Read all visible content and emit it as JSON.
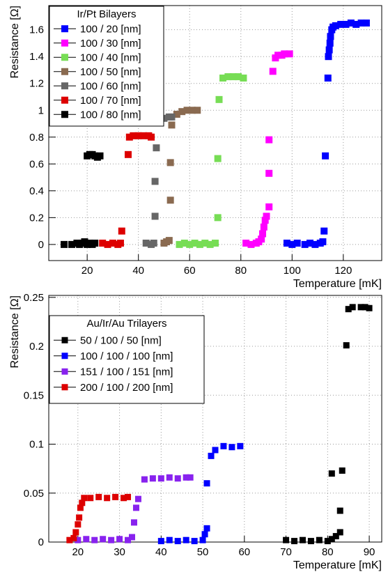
{
  "chart_data": [
    {
      "type": "scatter",
      "xlabel": "Temperature [mK]",
      "ylabel": "Resistance [Ω]",
      "xlim": [
        5,
        135
      ],
      "ylim": [
        -0.12,
        1.78
      ],
      "x_ticks": [
        20,
        40,
        60,
        80,
        100,
        120
      ],
      "y_ticks": [
        0,
        0.2,
        0.4,
        0.6,
        0.8,
        1,
        1.2,
        1.4,
        1.6
      ],
      "y_tick_labels": [
        "0",
        "0.2",
        "0.4",
        "0.6",
        "0.8",
        "1",
        "1.2",
        "1.4",
        "1.6"
      ],
      "grid": true,
      "legend": {
        "title": "Ir/Pt Bilayers",
        "position": "top-left"
      },
      "series": [
        {
          "name": "100 / 20 [nm]",
          "color": "#0000ff",
          "marker": "square",
          "points": [
            [
              98,
              0.01
            ],
            [
              100,
              0.0
            ],
            [
              102,
              0.01
            ],
            [
              105,
              0.0
            ],
            [
              107,
              0.01
            ],
            [
              109,
              0.0
            ],
            [
              111,
              0.01
            ],
            [
              112,
              0.02
            ],
            [
              112.5,
              0.1
            ],
            [
              113,
              0.66
            ],
            [
              114,
              1.24
            ],
            [
              114.2,
              1.4
            ],
            [
              114.5,
              1.45
            ],
            [
              114.8,
              1.5
            ],
            [
              115,
              1.55
            ],
            [
              115.5,
              1.6
            ],
            [
              116,
              1.62
            ],
            [
              117,
              1.63
            ],
            [
              119,
              1.64
            ],
            [
              121,
              1.64
            ],
            [
              123,
              1.65
            ],
            [
              125,
              1.64
            ],
            [
              127,
              1.65
            ],
            [
              129,
              1.65
            ]
          ]
        },
        {
          "name": "100 / 30 [nm]",
          "color": "#ff00ff",
          "marker": "square",
          "points": [
            [
              82,
              0.01
            ],
            [
              84,
              0.0
            ],
            [
              86,
              0.01
            ],
            [
              87,
              0.02
            ],
            [
              88,
              0.04
            ],
            [
              88.5,
              0.08
            ],
            [
              89,
              0.13
            ],
            [
              89.5,
              0.18
            ],
            [
              90,
              0.21
            ],
            [
              91,
              0.28
            ],
            [
              91,
              0.53
            ],
            [
              91,
              0.78
            ],
            [
              92.5,
              1.29
            ],
            [
              93.5,
              1.39
            ],
            [
              94.5,
              1.41
            ],
            [
              96,
              1.41
            ],
            [
              97,
              1.42
            ],
            [
              99,
              1.42
            ]
          ]
        },
        {
          "name": "100 / 40 [nm]",
          "color": "#77dd55",
          "marker": "square",
          "points": [
            [
              56,
              0.0
            ],
            [
              58,
              0.01
            ],
            [
              60,
              0.0
            ],
            [
              62,
              0.01
            ],
            [
              64,
              0.0
            ],
            [
              66,
              0.01
            ],
            [
              68,
              0.0
            ],
            [
              70,
              0.01
            ],
            [
              71,
              0.2
            ],
            [
              71,
              0.64
            ],
            [
              71.5,
              1.08
            ],
            [
              73,
              1.24
            ],
            [
              75,
              1.25
            ],
            [
              77,
              1.25
            ],
            [
              79,
              1.25
            ],
            [
              81,
              1.24
            ]
          ]
        },
        {
          "name": "100 / 50 [nm]",
          "color": "#8a6a50",
          "marker": "square",
          "points": [
            [
              50,
              0.01
            ],
            [
              51,
              0.02
            ],
            [
              52,
              0.03
            ],
            [
              52.5,
              0.33
            ],
            [
              52.5,
              0.61
            ],
            [
              53,
              0.89
            ],
            [
              55,
              0.97
            ],
            [
              57,
              0.99
            ],
            [
              59,
              1.0
            ],
            [
              61,
              1.0
            ],
            [
              63,
              1.0
            ]
          ]
        },
        {
          "name": "100 / 60 [nm]",
          "color": "#666666",
          "marker": "square",
          "points": [
            [
              43,
              0.01
            ],
            [
              45,
              0.0
            ],
            [
              46,
              0.01
            ],
            [
              46.5,
              0.21
            ],
            [
              46.5,
              0.47
            ],
            [
              47,
              0.72
            ],
            [
              48,
              0.93
            ],
            [
              50,
              0.94
            ],
            [
              52,
              0.95
            ],
            [
              53,
              0.95
            ]
          ]
        },
        {
          "name": "100 / 70 [nm]",
          "color": "#dd0000",
          "marker": "square",
          "points": [
            [
              26,
              0.01
            ],
            [
              28,
              0.0
            ],
            [
              30,
              0.01
            ],
            [
              32,
              0.0
            ],
            [
              33,
              0.01
            ],
            [
              33.5,
              0.1
            ],
            [
              36,
              0.67
            ],
            [
              36.5,
              0.8
            ],
            [
              38,
              0.81
            ],
            [
              40,
              0.81
            ],
            [
              42,
              0.81
            ],
            [
              44,
              0.81
            ],
            [
              45,
              0.8
            ]
          ]
        },
        {
          "name": "100 / 80 [nm]",
          "color": "#000000",
          "marker": "square",
          "points": [
            [
              11,
              0.0
            ],
            [
              14,
              0.0
            ],
            [
              16,
              0.01
            ],
            [
              17,
              0.0
            ],
            [
              18,
              0.01
            ],
            [
              19,
              0.02
            ],
            [
              20,
              0.0
            ],
            [
              21,
              0.01
            ],
            [
              22,
              0.0
            ],
            [
              23,
              0.01
            ],
            [
              20,
              0.66
            ],
            [
              21,
              0.67
            ],
            [
              22,
              0.67
            ],
            [
              23,
              0.66
            ],
            [
              24,
              0.65
            ],
            [
              25,
              0.66
            ]
          ]
        }
      ]
    },
    {
      "type": "scatter",
      "xlabel": "Temperature [mK]",
      "ylabel": "Resistance [Ω]",
      "xlim": [
        13,
        93
      ],
      "ylim": [
        0,
        0.252
      ],
      "x_ticks": [
        20,
        30,
        40,
        50,
        60,
        70,
        80,
        90
      ],
      "y_ticks": [
        0,
        0.05,
        0.1,
        0.15,
        0.2,
        0.25
      ],
      "y_tick_labels": [
        "0",
        "0.05",
        "0.1",
        "0.15",
        "0.2",
        "0.25"
      ],
      "grid": true,
      "legend": {
        "title": "Au/Ir/Au Trilayers",
        "position": "top-left"
      },
      "series": [
        {
          "name": "50 / 100 / 50 [nm]",
          "color": "#000000",
          "marker": "square",
          "points": [
            [
              70,
              0.002
            ],
            [
              72,
              0.001
            ],
            [
              74,
              0.002
            ],
            [
              76,
              0.001
            ],
            [
              78,
              0.002
            ],
            [
              80,
              0.001
            ],
            [
              81,
              0.003
            ],
            [
              82,
              0.006
            ],
            [
              83,
              0.01
            ],
            [
              83,
              0.032
            ],
            [
              83.5,
              0.073
            ],
            [
              81,
              0.07
            ],
            [
              84.5,
              0.201
            ],
            [
              85,
              0.238
            ],
            [
              86,
              0.24
            ],
            [
              88,
              0.24
            ],
            [
              89,
              0.24
            ],
            [
              90,
              0.239
            ]
          ]
        },
        {
          "name": "100 / 100 / 100 [nm]",
          "color": "#0000ff",
          "marker": "square",
          "points": [
            [
              40,
              0.001
            ],
            [
              42,
              0.002
            ],
            [
              44,
              0.001
            ],
            [
              46,
              0.002
            ],
            [
              48,
              0.001
            ],
            [
              50,
              0.002
            ],
            [
              50.5,
              0.008
            ],
            [
              51,
              0.014
            ],
            [
              51,
              0.06
            ],
            [
              52,
              0.088
            ],
            [
              53,
              0.094
            ],
            [
              55,
              0.098
            ],
            [
              57,
              0.097
            ],
            [
              59,
              0.098
            ]
          ]
        },
        {
          "name": "151 / 100 / 151 [nm]",
          "color": "#8822ee",
          "marker": "square",
          "points": [
            [
              20,
              0.002
            ],
            [
              22,
              0.003
            ],
            [
              24,
              0.002
            ],
            [
              26,
              0.003
            ],
            [
              28,
              0.002
            ],
            [
              30,
              0.003
            ],
            [
              32,
              0.002
            ],
            [
              33,
              0.005
            ],
            [
              33.5,
              0.02
            ],
            [
              34,
              0.035
            ],
            [
              34.5,
              0.044
            ],
            [
              36,
              0.064
            ],
            [
              38,
              0.065
            ],
            [
              40,
              0.065
            ],
            [
              42,
              0.066
            ],
            [
              44,
              0.065
            ],
            [
              46,
              0.066
            ],
            [
              47,
              0.066
            ]
          ]
        },
        {
          "name": "200 / 100 / 200 [nm]",
          "color": "#dd0000",
          "marker": "square",
          "points": [
            [
              18,
              0.002
            ],
            [
              19,
              0.004
            ],
            [
              19.5,
              0.01
            ],
            [
              20,
              0.018
            ],
            [
              20.3,
              0.025
            ],
            [
              20.6,
              0.035
            ],
            [
              21,
              0.04
            ],
            [
              21.5,
              0.045
            ],
            [
              23,
              0.045
            ],
            [
              25,
              0.046
            ],
            [
              27,
              0.045
            ],
            [
              29,
              0.046
            ],
            [
              31,
              0.045
            ],
            [
              32,
              0.046
            ]
          ]
        }
      ]
    }
  ]
}
